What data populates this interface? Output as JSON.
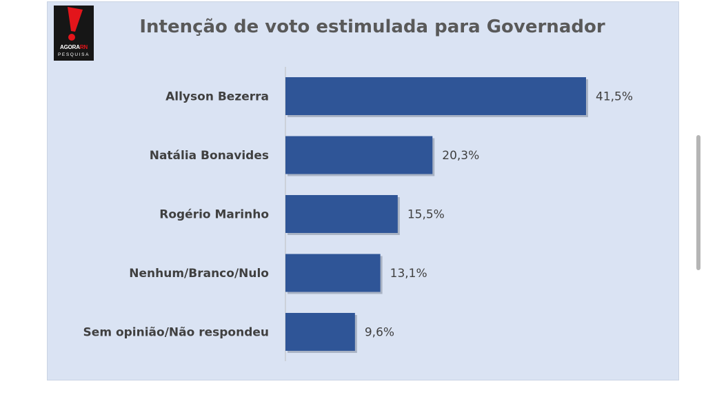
{
  "logo": {
    "brand_main": "AGORA",
    "brand_accent": "RN",
    "brand_sub": "PESQUISA",
    "icon": "exclamation-mark-icon",
    "accent_color": "#e3151b"
  },
  "chart_data": {
    "type": "bar",
    "orientation": "horizontal",
    "title": "Intenção de voto estimulada para Governador",
    "categories": [
      "Allyson Bezerra",
      "Natália Bonavides",
      "Rogério Marinho",
      "Nenhum/Branco/Nulo",
      "Sem opinião/Não respondeu"
    ],
    "values": [
      41.5,
      20.3,
      15.5,
      13.1,
      9.6
    ],
    "value_labels": [
      "41,5%",
      "20,3%",
      "15,5%",
      "13,1%",
      "9,6%"
    ],
    "xlim": [
      0,
      41.5
    ],
    "grid": false,
    "legend": "none",
    "bar_color": "#2f5597",
    "background_color": "#dae3f3"
  }
}
